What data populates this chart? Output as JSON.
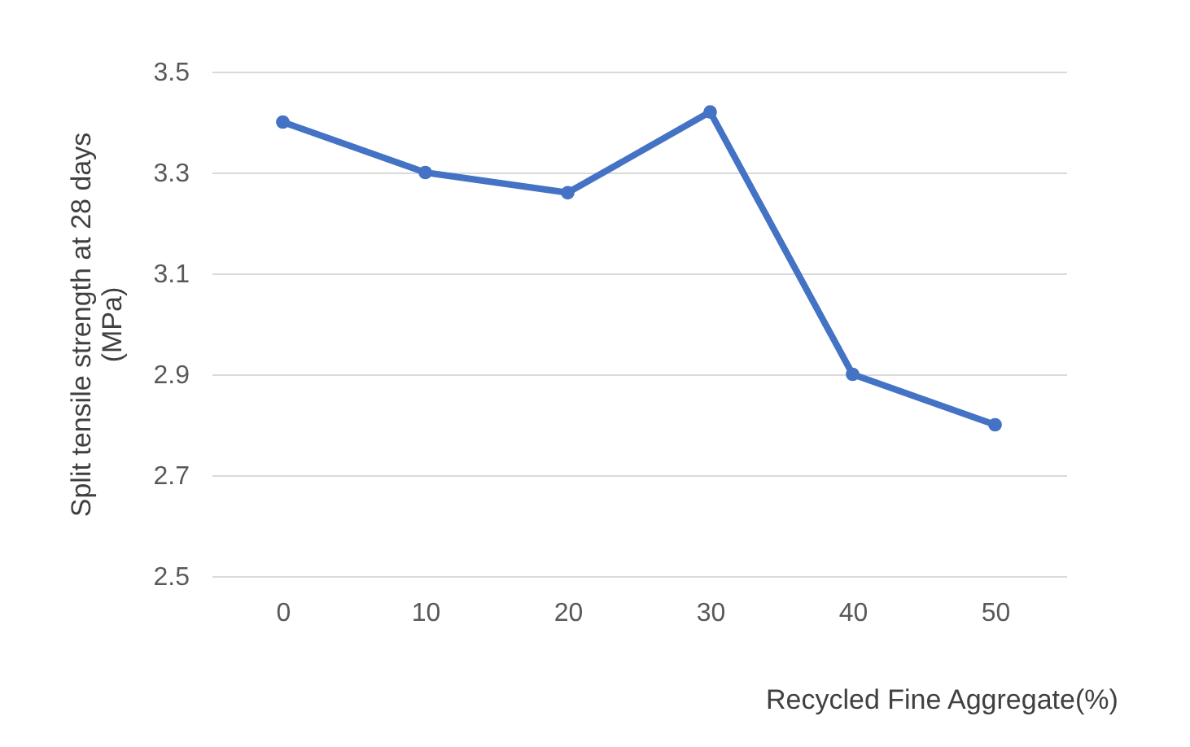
{
  "chart_data": {
    "type": "line",
    "xlabel": "Recycled Fine Aggregate(%)",
    "ylabel": "Split tensile strength at 28 days (MPa)",
    "categories": [
      "0",
      "10",
      "20",
      "30",
      "40",
      "50"
    ],
    "series": [
      {
        "color": "#4472c4",
        "values": [
          3.4,
          3.3,
          3.26,
          3.42,
          2.9,
          2.8
        ]
      }
    ],
    "ylim": [
      2.5,
      3.5
    ],
    "yticks": [
      2.5,
      2.7,
      2.9,
      3.1,
      3.3,
      3.5
    ],
    "grid": "y",
    "marker": "circle",
    "legend": false
  }
}
